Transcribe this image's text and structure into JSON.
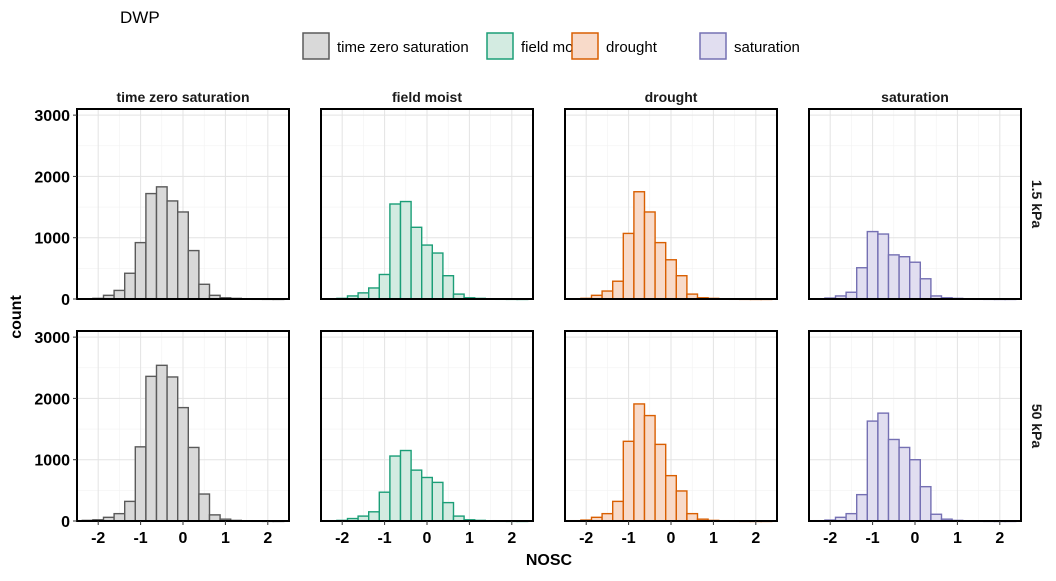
{
  "figure_title": "DWP",
  "legend": {
    "items": [
      {
        "label": "time zero saturation",
        "fill": "#d9d9d9",
        "stroke": "#5a5a5a"
      },
      {
        "label": "field moist",
        "fill": "#d3ebe1",
        "stroke": "#1b9e77"
      },
      {
        "label": "drought",
        "fill": "#f8dac9",
        "stroke": "#d95f02"
      },
      {
        "label": "saturation",
        "fill": "#e1def0",
        "stroke": "#7570b3"
      }
    ]
  },
  "chart_data": {
    "type": "bar",
    "subtype": "faceted histogram",
    "xlabel": "NOSC",
    "ylabel": "count",
    "xlim": [
      -2.5,
      2.5
    ],
    "ylim": [
      0,
      3100
    ],
    "x_ticks": [
      -2,
      -1,
      0,
      1,
      2
    ],
    "y_ticks": [
      0,
      1000,
      2000,
      3000
    ],
    "grid": true,
    "legend_position": "top",
    "columns": [
      "time zero saturation",
      "field moist",
      "drought",
      "saturation"
    ],
    "rows": [
      "1.5 kPa",
      "50 kPa"
    ],
    "bin_centers": [
      -2.25,
      -2.0,
      -1.75,
      -1.5,
      -1.25,
      -1.0,
      -0.75,
      -0.5,
      -0.25,
      0.0,
      0.25,
      0.5,
      0.75,
      1.0,
      1.25,
      1.5,
      1.75,
      2.0,
      2.25
    ],
    "panels": [
      {
        "row": "1.5 kPa",
        "column": "time zero saturation",
        "values": [
          5,
          10,
          60,
          140,
          420,
          920,
          1720,
          1830,
          1600,
          1420,
          790,
          240,
          60,
          20,
          10,
          5,
          3,
          2,
          1
        ]
      },
      {
        "row": "1.5 kPa",
        "column": "field moist",
        "values": [
          5,
          10,
          50,
          100,
          180,
          400,
          1550,
          1590,
          1170,
          880,
          750,
          380,
          80,
          20,
          10,
          5,
          3,
          2,
          1
        ]
      },
      {
        "row": "1.5 kPa",
        "column": "drought",
        "values": [
          5,
          10,
          60,
          130,
          290,
          1070,
          1750,
          1420,
          920,
          640,
          380,
          80,
          20,
          10,
          5,
          3,
          2,
          1,
          1
        ]
      },
      {
        "row": "1.5 kPa",
        "column": "saturation",
        "values": [
          5,
          15,
          50,
          110,
          510,
          1100,
          1060,
          720,
          690,
          600,
          330,
          50,
          20,
          10,
          5,
          3,
          2,
          1,
          1
        ]
      },
      {
        "row": "50 kPa",
        "column": "time zero saturation",
        "values": [
          10,
          20,
          60,
          120,
          320,
          1210,
          2360,
          2540,
          2350,
          1850,
          1200,
          440,
          100,
          30,
          10,
          5,
          3,
          2,
          1
        ]
      },
      {
        "row": "50 kPa",
        "column": "field moist",
        "values": [
          5,
          10,
          40,
          80,
          150,
          470,
          1060,
          1150,
          830,
          710,
          630,
          300,
          80,
          20,
          10,
          5,
          3,
          2,
          1
        ]
      },
      {
        "row": "50 kPa",
        "column": "drought",
        "values": [
          5,
          15,
          60,
          120,
          320,
          1300,
          1910,
          1720,
          1250,
          740,
          490,
          120,
          30,
          10,
          5,
          3,
          2,
          1,
          1
        ]
      },
      {
        "row": "50 kPa",
        "column": "saturation",
        "values": [
          5,
          15,
          60,
          120,
          430,
          1630,
          1760,
          1330,
          1200,
          1000,
          560,
          110,
          30,
          10,
          5,
          3,
          2,
          1,
          1
        ]
      }
    ]
  }
}
